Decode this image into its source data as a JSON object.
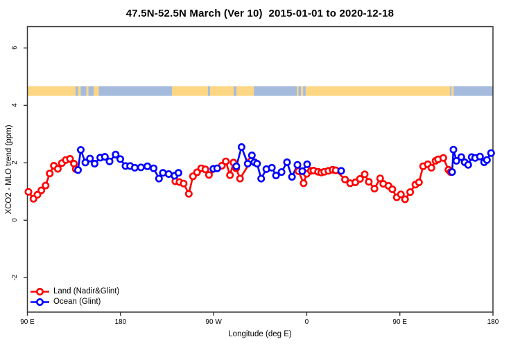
{
  "title": "47.5N-52.5N March (Ver 10)  2015-01-01 to 2020-12-18",
  "axes": {
    "x": {
      "label": "Longitude (deg E)",
      "range": [
        90,
        540
      ],
      "ticks": [
        {
          "pos": 90,
          "label": "90 E"
        },
        {
          "pos": 180,
          "label": "180"
        },
        {
          "pos": 270,
          "label": "90 W"
        },
        {
          "pos": 360,
          "label": "0"
        },
        {
          "pos": 450,
          "label": "90 E"
        },
        {
          "pos": 540,
          "label": "180"
        }
      ]
    },
    "y": {
      "label": "XCO2 - MLO trend (ppm)",
      "range": [
        -3.2,
        6.7
      ],
      "ticks": [
        {
          "pos": -2,
          "label": "-2"
        },
        {
          "pos": 0,
          "label": "0"
        },
        {
          "pos": 2,
          "label": "2"
        },
        {
          "pos": 4,
          "label": "4"
        },
        {
          "pos": 6,
          "label": "6"
        }
      ]
    }
  },
  "legend": {
    "items": [
      {
        "label": "Land (Nadir&Glint)",
        "color": "#ff0000"
      },
      {
        "label": "Ocean (Glint)",
        "color": "#0000ff"
      }
    ]
  },
  "colors": {
    "land": "#ff0000",
    "ocean": "#0000ff",
    "band_land": "#fcd683",
    "band_ocean": "#a5bbdd",
    "frame": "#333333",
    "marker_fill": "#ffffff"
  },
  "land_ocean_band": {
    "meaning": "land/ocean longitude mask strip drawn near y=4.5",
    "value_range": [
      4.33,
      4.67
    ],
    "segments": [
      {
        "from": 90,
        "to": 136.6,
        "type": "land"
      },
      {
        "from": 136.6,
        "to": 139,
        "type": "ocean"
      },
      {
        "from": 139,
        "to": 141.5,
        "type": "land"
      },
      {
        "from": 141.5,
        "to": 147,
        "type": "ocean"
      },
      {
        "from": 147,
        "to": 149,
        "type": "land"
      },
      {
        "from": 149,
        "to": 154,
        "type": "ocean"
      },
      {
        "from": 154,
        "to": 159,
        "type": "land"
      },
      {
        "from": 159,
        "to": 229.7,
        "type": "ocean"
      },
      {
        "from": 229.7,
        "to": 264.6,
        "type": "land"
      },
      {
        "from": 264.6,
        "to": 266.6,
        "type": "ocean"
      },
      {
        "from": 266.6,
        "to": 289.4,
        "type": "land"
      },
      {
        "from": 289.4,
        "to": 292,
        "type": "ocean"
      },
      {
        "from": 292,
        "to": 308.8,
        "type": "land"
      },
      {
        "from": 308.8,
        "to": 350.5,
        "type": "ocean"
      },
      {
        "from": 350.5,
        "to": 352,
        "type": "land"
      },
      {
        "from": 352,
        "to": 354.5,
        "type": "ocean"
      },
      {
        "from": 354.5,
        "to": 356.5,
        "type": "land"
      },
      {
        "from": 356.5,
        "to": 359,
        "type": "ocean"
      },
      {
        "from": 359,
        "to": 498.5,
        "type": "land"
      },
      {
        "from": 498.5,
        "to": 500,
        "type": "ocean"
      },
      {
        "from": 500,
        "to": 502,
        "type": "land"
      },
      {
        "from": 502,
        "to": 540,
        "type": "ocean"
      }
    ]
  },
  "chart_data": {
    "type": "line",
    "title": "47.5N-52.5N March (Ver 10)  2015-01-01 to 2020-12-18",
    "xlabel": "Longitude (deg E)",
    "ylabel": "XCO2 - MLO trend (ppm)",
    "xlim": [
      90,
      540
    ],
    "ylim": [
      -3.2,
      6.7
    ],
    "x_unit": "degrees East, continuous wrap 90..540",
    "legend_position": "bottom-left",
    "grid": false,
    "series": [
      {
        "name": "Land (Nadir&Glint)",
        "color": "#ff0000",
        "marker": "open-circle",
        "segments": [
          [
            [
              91,
              0.99
            ],
            [
              95.9,
              0.75
            ],
            [
              99.7,
              0.89
            ],
            [
              103.5,
              1.04
            ],
            [
              107.6,
              1.21
            ],
            [
              111.6,
              1.63
            ],
            [
              115.6,
              1.9
            ],
            [
              119.4,
              1.79
            ],
            [
              123.4,
              1.99
            ],
            [
              127.2,
              2.1
            ],
            [
              131.2,
              2.14
            ],
            [
              135,
              1.97
            ],
            [
              136.8,
              1.78
            ]
          ],
          [
            [
              233,
              1.36
            ],
            [
              237,
              1.33
            ],
            [
              241,
              1.28
            ],
            [
              246,
              0.92
            ],
            [
              250,
              1.53
            ],
            [
              254,
              1.67
            ],
            [
              258,
              1.81
            ],
            [
              262,
              1.77
            ],
            [
              265.5,
              1.58
            ],
            [
              278,
              1.9
            ],
            [
              281.8,
              2.05
            ],
            [
              285.8,
              1.57
            ],
            [
              289.2,
              2.01
            ],
            [
              291.7,
              1.81
            ],
            [
              295.5,
              1.45
            ],
            [
              306,
              2.06
            ]
          ],
          [
            [
              352,
              1.71
            ],
            [
              357,
              1.29
            ],
            [
              360,
              1.62
            ],
            [
              364,
              1.72
            ],
            [
              366.5,
              1.73
            ],
            [
              371,
              1.69
            ],
            [
              374,
              1.66
            ],
            [
              377,
              1.69
            ],
            [
              381,
              1.72
            ],
            [
              385,
              1.76
            ],
            [
              388,
              1.74
            ],
            [
              397,
              1.42
            ],
            [
              402,
              1.29
            ],
            [
              407,
              1.32
            ],
            [
              411.5,
              1.44
            ],
            [
              416,
              1.6
            ],
            [
              420,
              1.34
            ],
            [
              425.5,
              1.1
            ],
            [
              431,
              1.46
            ],
            [
              434,
              1.27
            ],
            [
              439,
              1.2
            ],
            [
              442.7,
              1.08
            ],
            [
              447,
              0.8
            ],
            [
              451,
              0.9
            ],
            [
              455,
              0.73
            ],
            [
              460,
              0.98
            ],
            [
              465,
              1.24
            ],
            [
              468.5,
              1.32
            ],
            [
              472.5,
              1.88
            ],
            [
              477,
              1.95
            ],
            [
              480.5,
              1.83
            ],
            [
              484.5,
              2.07
            ],
            [
              487,
              2.12
            ],
            [
              492,
              2.17
            ],
            [
              497,
              1.76
            ],
            [
              499,
              1.68
            ]
          ]
        ]
      },
      {
        "name": "Ocean (Glint)",
        "color": "#0000ff",
        "marker": "open-circle",
        "segments": [
          [
            [
              138.9,
              1.75
            ],
            [
              141.6,
              2.45
            ],
            [
              146,
              2.01
            ],
            [
              150.5,
              2.15
            ],
            [
              155,
              1.97
            ],
            [
              160.4,
              2.18
            ],
            [
              164.9,
              2.21
            ],
            [
              169.4,
              2.05
            ],
            [
              175.3,
              2.29
            ],
            [
              179.8,
              2.13
            ],
            [
              184.8,
              1.89
            ],
            [
              189.3,
              1.89
            ],
            [
              193.8,
              1.83
            ],
            [
              199.8,
              1.84
            ],
            [
              206,
              1.88
            ],
            [
              212,
              1.81
            ],
            [
              217.2,
              1.45
            ],
            [
              221,
              1.65
            ],
            [
              226.6,
              1.61
            ],
            [
              232.2,
              1.55
            ],
            [
              236,
              1.65
            ]
          ],
          [
            [
              269.7,
              1.79
            ],
            [
              273.5,
              1.81
            ]
          ],
          [
            [
              292,
              1.88
            ],
            [
              297,
              2.55
            ],
            [
              303,
              1.97
            ],
            [
              307,
              2.26
            ],
            [
              309.5,
              2.02
            ],
            [
              312,
              1.97
            ],
            [
              316,
              1.45
            ],
            [
              321,
              1.78
            ],
            [
              326.3,
              1.83
            ],
            [
              330.3,
              1.56
            ],
            [
              335.7,
              1.68
            ],
            [
              341,
              2.02
            ],
            [
              345.7,
              1.51
            ],
            [
              351,
              1.93
            ],
            [
              355.7,
              1.71
            ],
            [
              360.4,
              1.95
            ]
          ],
          [
            [
              393.3,
              1.72
            ]
          ],
          [
            [
              500.5,
              1.68
            ],
            [
              501.8,
              2.46
            ],
            [
              504.7,
              2.07
            ],
            [
              509.4,
              2.2
            ],
            [
              512.7,
              2.02
            ],
            [
              516.1,
              1.93
            ],
            [
              519.4,
              2.2
            ],
            [
              522.8,
              2.17
            ],
            [
              527.5,
              2.22
            ],
            [
              531.5,
              2.02
            ],
            [
              534.2,
              2.1
            ],
            [
              538.2,
              2.34
            ]
          ]
        ]
      }
    ]
  }
}
